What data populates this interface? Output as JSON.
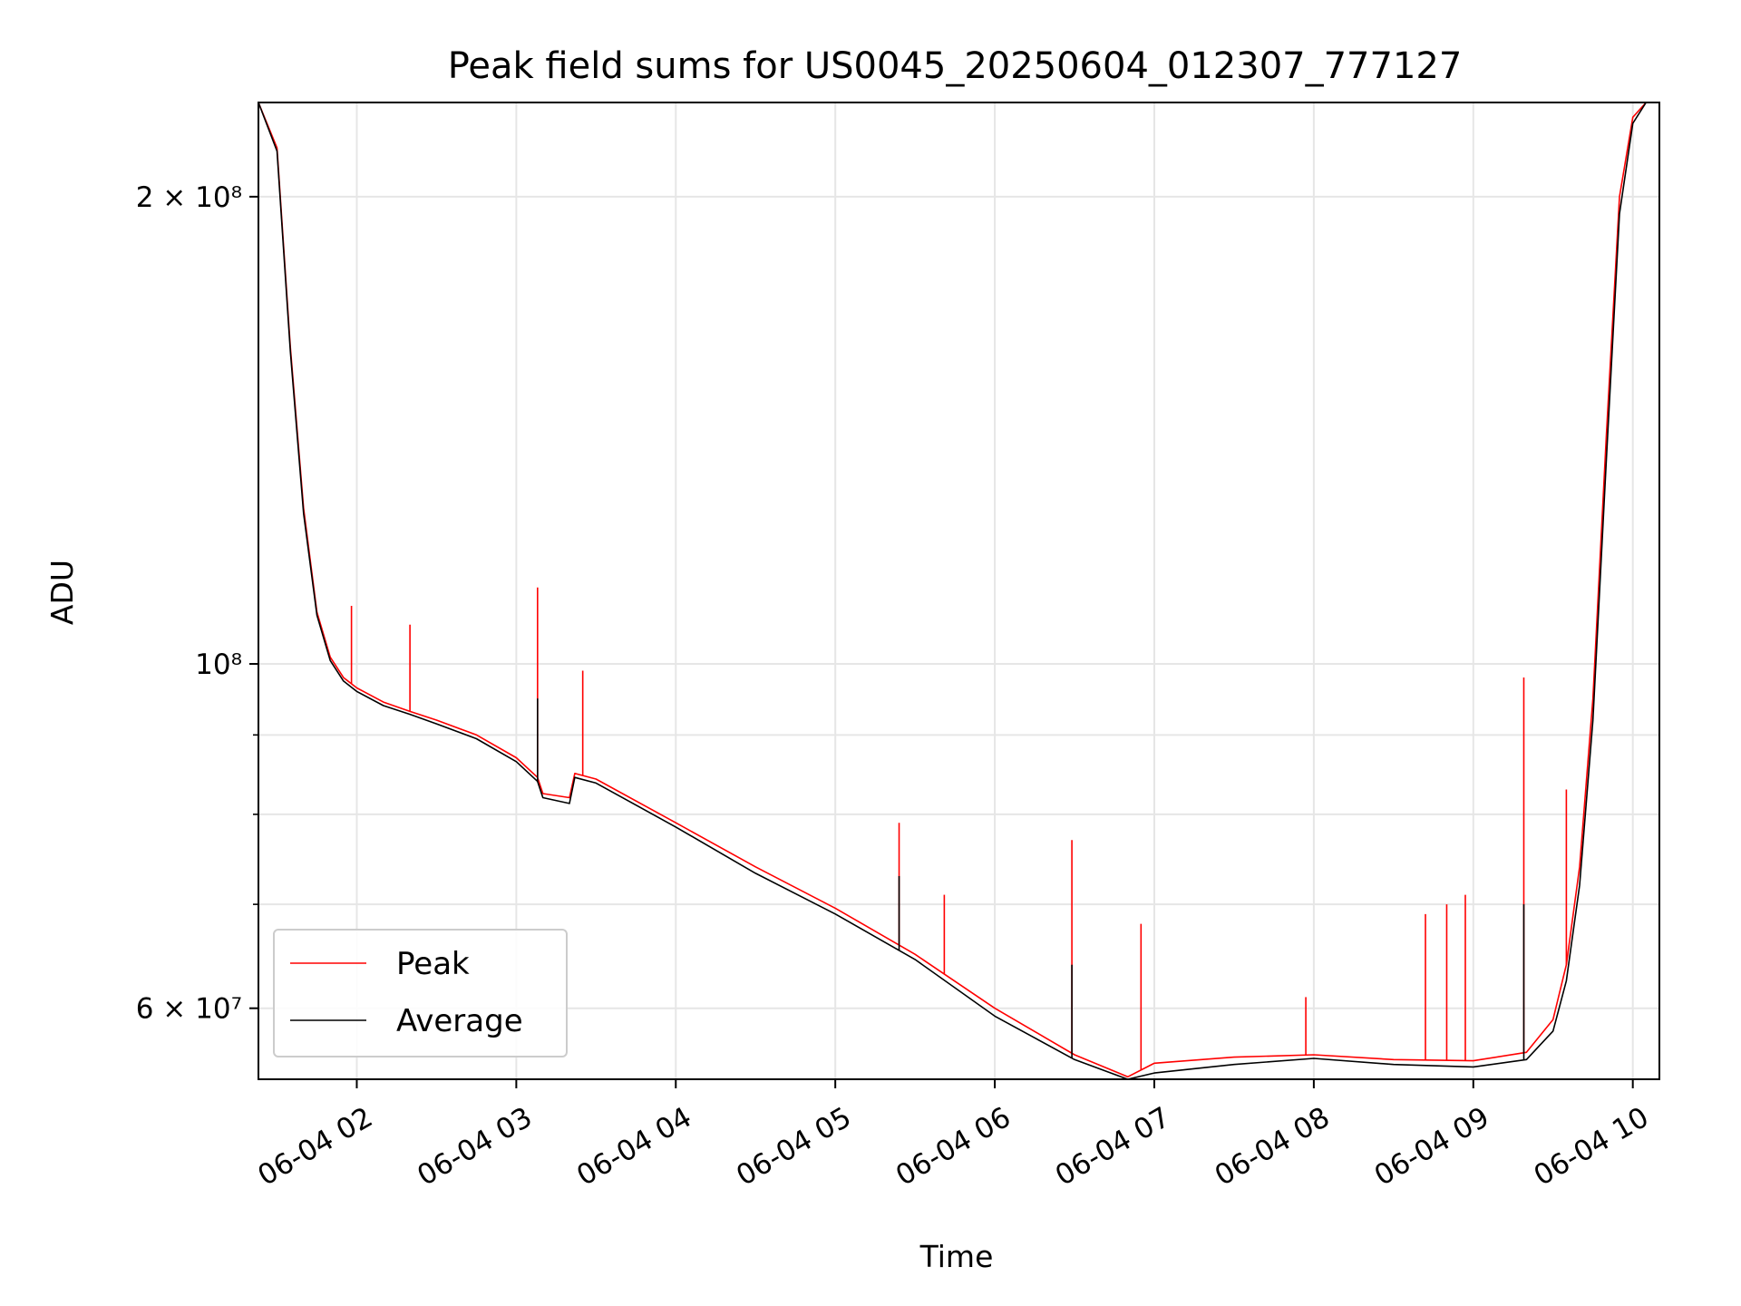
{
  "chart_data": {
    "type": "line",
    "title": "Peak field sums for US0045_20250604_012307_777127",
    "xlabel": "Time",
    "ylabel": "ADU",
    "yscale": "log",
    "xlim": [
      "2025-06-04 01:23",
      "2025-06-04 10:10"
    ],
    "ylim": [
      54000000,
      230000000
    ],
    "grid": true,
    "legend_position": "lower-left",
    "x_ticks": [
      {
        "value": "2025-06-04 02:00",
        "label": "06-04 02"
      },
      {
        "value": "2025-06-04 03:00",
        "label": "06-04 03"
      },
      {
        "value": "2025-06-04 04:00",
        "label": "06-04 04"
      },
      {
        "value": "2025-06-04 05:00",
        "label": "06-04 05"
      },
      {
        "value": "2025-06-04 06:00",
        "label": "06-04 06"
      },
      {
        "value": "2025-06-04 07:00",
        "label": "06-04 07"
      },
      {
        "value": "2025-06-04 08:00",
        "label": "06-04 08"
      },
      {
        "value": "2025-06-04 09:00",
        "label": "06-04 09"
      },
      {
        "value": "2025-06-04 10:00",
        "label": "06-04 10"
      }
    ],
    "y_major_ticks": [
      {
        "value": 60000000,
        "base": "6",
        "exp": "7"
      },
      {
        "value": 100000000,
        "base": "",
        "exp": "8"
      },
      {
        "value": 200000000,
        "base": "2",
        "exp": "8"
      }
    ],
    "y_minor_ticks": [
      70000000,
      80000000,
      90000000
    ],
    "series": [
      {
        "name": "Peak",
        "color": "#ff0000",
        "x": [
          "2025-06-04 01:23",
          "2025-06-04 01:30",
          "2025-06-04 01:35",
          "2025-06-04 01:40",
          "2025-06-04 01:45",
          "2025-06-04 01:50",
          "2025-06-04 01:55",
          "2025-06-04 02:00",
          "2025-06-04 02:10",
          "2025-06-04 02:20",
          "2025-06-04 02:30",
          "2025-06-04 02:45",
          "2025-06-04 03:00",
          "2025-06-04 03:08",
          "2025-06-04 03:10",
          "2025-06-04 03:20",
          "2025-06-04 03:22",
          "2025-06-04 03:30",
          "2025-06-04 04:00",
          "2025-06-04 04:30",
          "2025-06-04 05:00",
          "2025-06-04 05:30",
          "2025-06-04 06:00",
          "2025-06-04 06:30",
          "2025-06-04 06:50",
          "2025-06-04 07:00",
          "2025-06-04 07:30",
          "2025-06-04 08:00",
          "2025-06-04 08:30",
          "2025-06-04 09:00",
          "2025-06-04 09:20",
          "2025-06-04 09:30",
          "2025-06-04 09:35",
          "2025-06-04 09:40",
          "2025-06-04 09:45",
          "2025-06-04 09:50",
          "2025-06-04 09:55",
          "2025-06-04 10:00",
          "2025-06-04 10:05",
          "2025-06-04 10:10"
        ],
        "y": [
          230000000,
          215000000,
          160000000,
          126000000,
          108000000,
          101000000,
          98000000,
          96500000,
          94500000,
          93200000,
          92000000,
          90000000,
          87000000,
          84500000,
          82500000,
          82000000,
          85000000,
          84300000,
          79000000,
          74000000,
          69600000,
          65000000,
          60000000,
          56000000,
          54200000,
          55300000,
          55800000,
          56000000,
          55600000,
          55500000,
          56200000,
          59000000,
          64000000,
          74000000,
          95000000,
          140000000,
          200000000,
          225000000,
          230000000,
          230000000
        ],
        "spikes": [
          {
            "x": "2025-06-04 01:58",
            "y": 109000000
          },
          {
            "x": "2025-06-04 02:20",
            "y": 106000000
          },
          {
            "x": "2025-06-04 03:08",
            "y": 112000000
          },
          {
            "x": "2025-06-04 03:25",
            "y": 99000000
          },
          {
            "x": "2025-06-04 05:24",
            "y": 79000000
          },
          {
            "x": "2025-06-04 05:41",
            "y": 71000000
          },
          {
            "x": "2025-06-04 06:29",
            "y": 77000000
          },
          {
            "x": "2025-06-04 06:55",
            "y": 68000000
          },
          {
            "x": "2025-06-04 07:57",
            "y": 61000000
          },
          {
            "x": "2025-06-04 08:42",
            "y": 69000000
          },
          {
            "x": "2025-06-04 08:50",
            "y": 70000000
          },
          {
            "x": "2025-06-04 08:57",
            "y": 71000000
          },
          {
            "x": "2025-06-04 09:19",
            "y": 98000000
          },
          {
            "x": "2025-06-04 09:35",
            "y": 83000000
          }
        ]
      },
      {
        "name": "Average",
        "color": "#000000",
        "x": [
          "2025-06-04 01:23",
          "2025-06-04 01:30",
          "2025-06-04 01:35",
          "2025-06-04 01:40",
          "2025-06-04 01:45",
          "2025-06-04 01:50",
          "2025-06-04 01:55",
          "2025-06-04 02:00",
          "2025-06-04 02:10",
          "2025-06-04 02:20",
          "2025-06-04 02:30",
          "2025-06-04 02:45",
          "2025-06-04 03:00",
          "2025-06-04 03:08",
          "2025-06-04 03:10",
          "2025-06-04 03:20",
          "2025-06-04 03:22",
          "2025-06-04 03:30",
          "2025-06-04 04:00",
          "2025-06-04 04:30",
          "2025-06-04 05:00",
          "2025-06-04 05:30",
          "2025-06-04 06:00",
          "2025-06-04 06:30",
          "2025-06-04 06:50",
          "2025-06-04 07:00",
          "2025-06-04 07:30",
          "2025-06-04 08:00",
          "2025-06-04 08:30",
          "2025-06-04 09:00",
          "2025-06-04 09:20",
          "2025-06-04 09:30",
          "2025-06-04 09:35",
          "2025-06-04 09:40",
          "2025-06-04 09:45",
          "2025-06-04 09:50",
          "2025-06-04 09:55",
          "2025-06-04 10:00",
          "2025-06-04 10:05",
          "2025-06-04 10:10"
        ],
        "y": [
          230000000,
          214000000,
          159000000,
          125000000,
          107500000,
          100500000,
          97500000,
          96000000,
          94000000,
          92800000,
          91500000,
          89500000,
          86500000,
          84000000,
          82000000,
          81300000,
          84500000,
          83800000,
          78500000,
          73300000,
          69000000,
          64500000,
          59300000,
          55600000,
          54000000,
          54500000,
          55200000,
          55700000,
          55200000,
          55000000,
          55600000,
          58000000,
          62500000,
          72000000,
          92000000,
          135000000,
          195000000,
          223000000,
          230000000,
          230000000
        ],
        "spikes": [
          {
            "x": "2025-06-04 03:08",
            "y": 95000000
          },
          {
            "x": "2025-06-04 05:24",
            "y": 73000000
          },
          {
            "x": "2025-06-04 06:29",
            "y": 64000000
          },
          {
            "x": "2025-06-04 09:19",
            "y": 70000000
          }
        ]
      }
    ]
  }
}
